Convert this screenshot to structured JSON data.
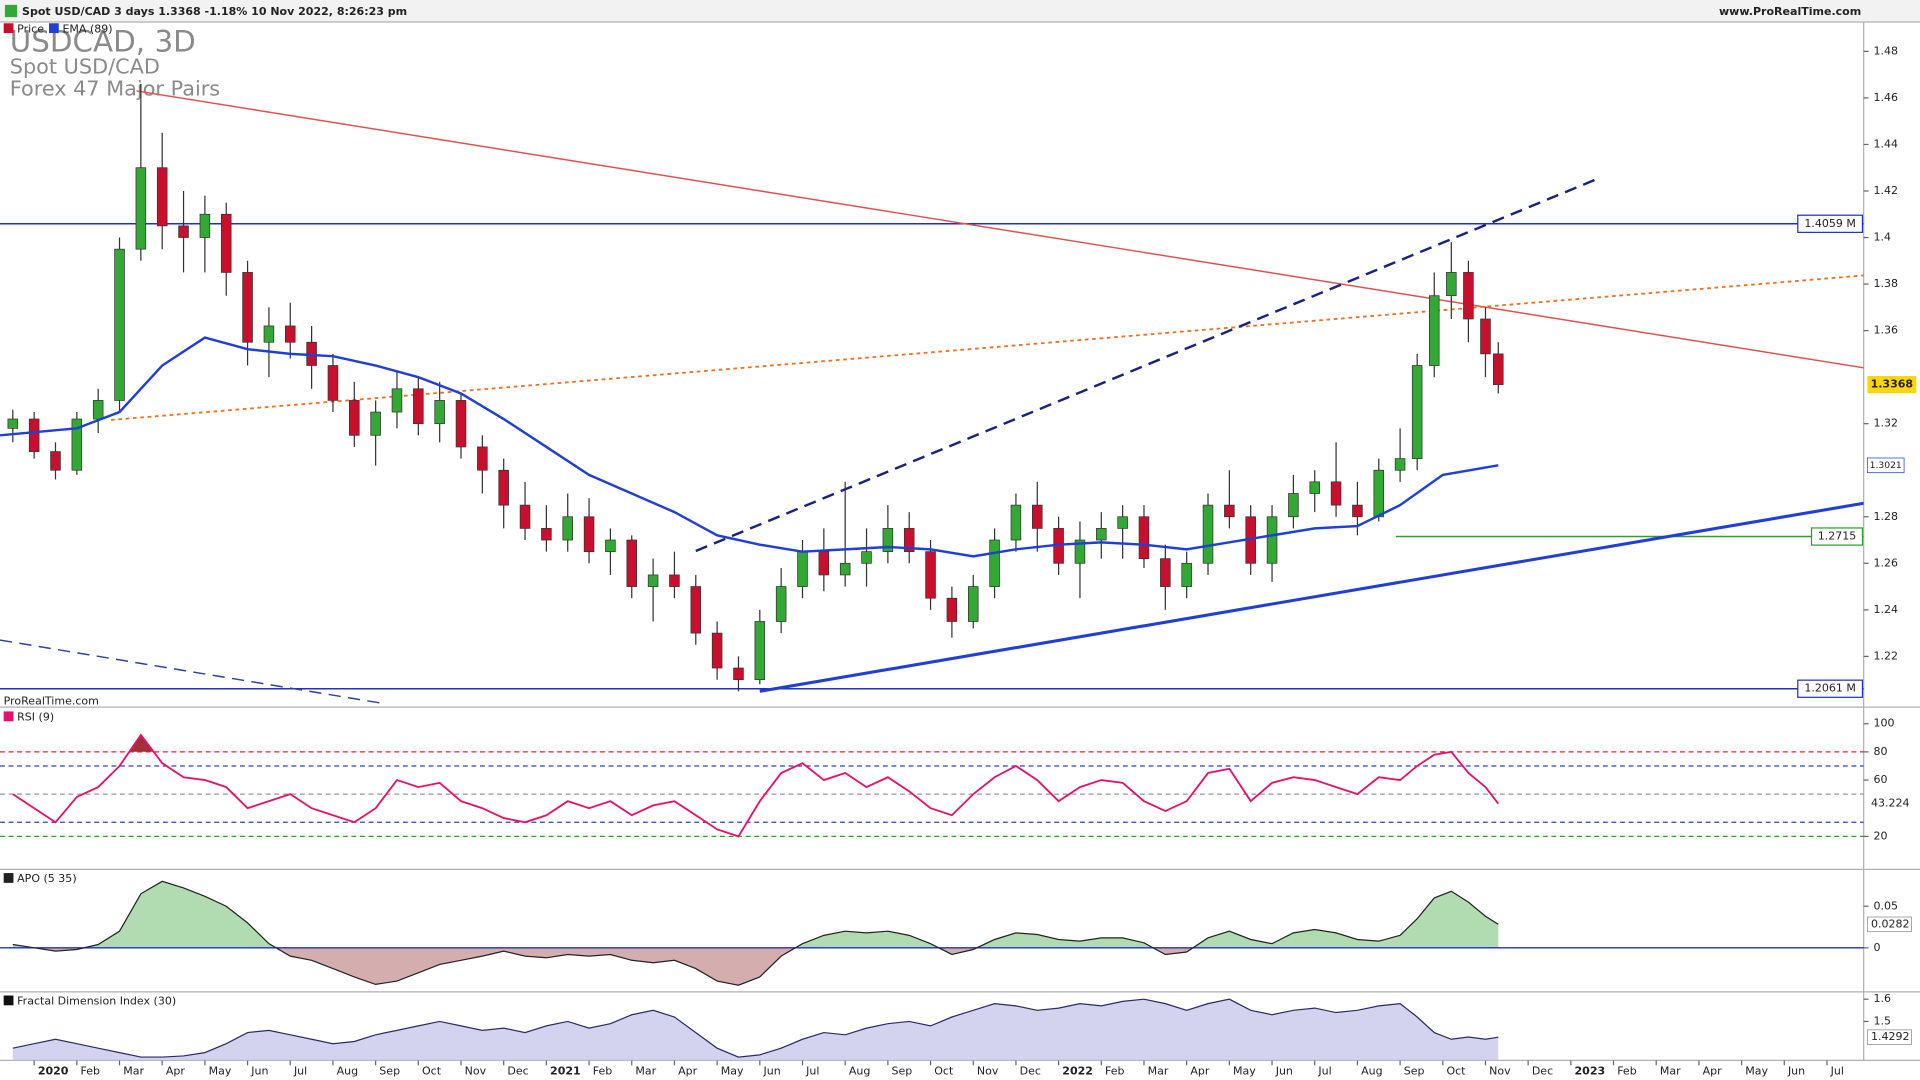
{
  "header": {
    "title": "Spot USD/CAD 3 days 1.3368 -1.18% 10 Nov 2022, 8:26:23 pm",
    "site": "www.ProRealTime.com",
    "watermark": "ProRealTime.com"
  },
  "chart_data": [
    {
      "type": "candlestick",
      "title": "USDCAD, 3D",
      "subtitle": [
        "Spot USD/CAD",
        "Forex 47 Major Pairs"
      ],
      "name": "Price",
      "up_color": "#34a834",
      "down_color": "#c8102e",
      "x": [
        -0.5,
        0,
        0.5,
        1,
        1.5,
        2,
        2.5,
        3,
        3.5,
        4,
        4.5,
        5,
        5.5,
        6,
        6.5,
        7,
        7.5,
        8,
        8.5,
        9,
        9.5,
        10,
        10.5,
        11,
        11.5,
        12,
        12.5,
        13,
        13.5,
        14,
        14.5,
        15,
        15.5,
        16,
        16.5,
        17,
        17.5,
        18,
        18.5,
        19,
        19.5,
        20,
        20.5,
        21,
        21.5,
        22,
        22.5,
        23,
        23.5,
        24,
        24.5,
        25,
        25.5,
        26,
        26.5,
        27,
        27.5,
        28,
        28.5,
        29,
        29.5,
        30,
        30.5,
        31,
        31.5,
        32,
        32.4,
        32.8,
        33.2,
        33.6,
        34,
        34.3
      ],
      "open": [
        1.318,
        1.322,
        1.308,
        1.3,
        1.322,
        1.33,
        1.395,
        1.43,
        1.405,
        1.4,
        1.41,
        1.385,
        1.355,
        1.362,
        1.355,
        1.345,
        1.33,
        1.315,
        1.325,
        1.335,
        1.32,
        1.33,
        1.31,
        1.3,
        1.285,
        1.275,
        1.27,
        1.28,
        1.265,
        1.27,
        1.25,
        1.255,
        1.25,
        1.23,
        1.215,
        1.21,
        1.235,
        1.25,
        1.265,
        1.255,
        1.26,
        1.265,
        1.275,
        1.265,
        1.245,
        1.235,
        1.25,
        1.27,
        1.285,
        1.275,
        1.26,
        1.27,
        1.275,
        1.28,
        1.262,
        1.25,
        1.26,
        1.285,
        1.28,
        1.26,
        1.28,
        1.29,
        1.295,
        1.285,
        1.28,
        1.3,
        1.305,
        1.345,
        1.375,
        1.385,
        1.365,
        1.35
      ],
      "high": [
        1.326,
        1.325,
        1.312,
        1.325,
        1.335,
        1.4,
        1.466,
        1.445,
        1.42,
        1.418,
        1.415,
        1.39,
        1.37,
        1.372,
        1.362,
        1.35,
        1.338,
        1.33,
        1.342,
        1.34,
        1.338,
        1.333,
        1.315,
        1.305,
        1.295,
        1.285,
        1.29,
        1.288,
        1.275,
        1.272,
        1.262,
        1.265,
        1.255,
        1.235,
        1.22,
        1.24,
        1.258,
        1.27,
        1.275,
        1.295,
        1.275,
        1.285,
        1.282,
        1.27,
        1.25,
        1.255,
        1.275,
        1.29,
        1.295,
        1.28,
        1.278,
        1.282,
        1.285,
        1.285,
        1.268,
        1.265,
        1.29,
        1.3,
        1.285,
        1.285,
        1.298,
        1.3,
        1.312,
        1.295,
        1.305,
        1.318,
        1.35,
        1.385,
        1.398,
        1.39,
        1.37,
        1.355
      ],
      "low": [
        1.312,
        1.305,
        1.296,
        1.298,
        1.316,
        1.325,
        1.39,
        1.395,
        1.385,
        1.385,
        1.375,
        1.345,
        1.34,
        1.348,
        1.335,
        1.325,
        1.31,
        1.302,
        1.318,
        1.315,
        1.312,
        1.305,
        1.29,
        1.275,
        1.27,
        1.265,
        1.265,
        1.26,
        1.255,
        1.245,
        1.235,
        1.245,
        1.225,
        1.21,
        1.205,
        1.208,
        1.23,
        1.245,
        1.248,
        1.25,
        1.25,
        1.26,
        1.26,
        1.24,
        1.228,
        1.232,
        1.245,
        1.265,
        1.265,
        1.255,
        1.245,
        1.262,
        1.262,
        1.258,
        1.24,
        1.245,
        1.255,
        1.275,
        1.255,
        1.252,
        1.275,
        1.282,
        1.28,
        1.272,
        1.278,
        1.295,
        1.3,
        1.34,
        1.365,
        1.355,
        1.34,
        1.333
      ],
      "close": [
        1.322,
        1.308,
        1.3,
        1.322,
        1.33,
        1.395,
        1.43,
        1.405,
        1.4,
        1.41,
        1.385,
        1.355,
        1.362,
        1.355,
        1.345,
        1.33,
        1.315,
        1.325,
        1.335,
        1.32,
        1.33,
        1.31,
        1.3,
        1.285,
        1.275,
        1.27,
        1.28,
        1.265,
        1.27,
        1.25,
        1.255,
        1.25,
        1.23,
        1.215,
        1.21,
        1.235,
        1.25,
        1.265,
        1.255,
        1.26,
        1.265,
        1.275,
        1.265,
        1.245,
        1.235,
        1.25,
        1.27,
        1.285,
        1.275,
        1.26,
        1.27,
        1.275,
        1.28,
        1.262,
        1.25,
        1.26,
        1.285,
        1.28,
        1.26,
        1.28,
        1.29,
        1.295,
        1.285,
        1.28,
        1.3,
        1.305,
        1.345,
        1.375,
        1.385,
        1.365,
        1.35,
        1.3368
      ],
      "ema": {
        "name": "EMA (89)",
        "color": "#1f3fd6",
        "x": [
          -0.8,
          1,
          2,
          3,
          4,
          5,
          6,
          7,
          8,
          9,
          10,
          11,
          12,
          13,
          14,
          15,
          16,
          17,
          18,
          19,
          20,
          21,
          22,
          23,
          24,
          25,
          26,
          27,
          28,
          29,
          30,
          31,
          32,
          33,
          34.3
        ],
        "values": [
          1.315,
          1.318,
          1.325,
          1.345,
          1.357,
          1.352,
          1.35,
          1.349,
          1.345,
          1.34,
          1.333,
          1.322,
          1.31,
          1.298,
          1.29,
          1.282,
          1.272,
          1.268,
          1.265,
          1.266,
          1.267,
          1.266,
          1.263,
          1.266,
          1.268,
          1.269,
          1.268,
          1.266,
          1.269,
          1.272,
          1.275,
          1.276,
          1.285,
          1.298,
          1.3021
        ]
      },
      "hlines": [
        {
          "value": 1.4059,
          "label": "1.4059 M",
          "color": "#2030c0"
        },
        {
          "value": 1.2061,
          "label": "1.2061 M",
          "color": "#2030c0"
        },
        {
          "value": 1.2715,
          "label": "1.2715",
          "color": "#2aa02a",
          "x_start": 31.9
        }
      ],
      "trendlines": [
        {
          "color": "#e05050",
          "dash": "none",
          "width": 1.2,
          "points": [
            [
              2.4,
              1.463
            ],
            [
              42.86,
              1.344
            ]
          ]
        },
        {
          "color": "#f07020",
          "dash": "3,3",
          "width": 1.5,
          "points": [
            [
              1.8,
              1.3216
            ],
            [
              42.86,
              1.3837
            ]
          ]
        },
        {
          "color": "#1a237e",
          "dash": "10,6",
          "width": 2,
          "points": [
            [
              15.5,
              1.2653
            ],
            [
              36.7,
              1.4258
            ]
          ]
        },
        {
          "color": "#1f3fd6",
          "dash": "none",
          "width": 2.5,
          "points": [
            [
              17,
              1.205
            ],
            [
              42.86,
              1.2858
            ]
          ]
        },
        {
          "color": "#3040a0",
          "dash": "10,6",
          "width": 1.2,
          "points": [
            [
              -0.8,
              1.227
            ],
            [
              8.1,
              1.2
            ]
          ]
        }
      ],
      "xlim": [
        -0.8,
        42.86
      ],
      "ylim": [
        1.1995,
        1.4926
      ],
      "yticks": [
        1.22,
        1.24,
        1.26,
        1.28,
        1.32,
        1.36,
        1.38,
        1.4,
        1.42,
        1.44,
        1.46,
        1.48
      ],
      "xticks": [
        {
          "value": 0,
          "label": "2020"
        },
        {
          "value": 1,
          "label": "Feb"
        },
        {
          "value": 2,
          "label": "Mar"
        },
        {
          "value": 3,
          "label": "Apr"
        },
        {
          "value": 4,
          "label": "May"
        },
        {
          "value": 5,
          "label": "Jun"
        },
        {
          "value": 6,
          "label": "Jul"
        },
        {
          "value": 7,
          "label": "Aug"
        },
        {
          "value": 8,
          "label": "Sep"
        },
        {
          "value": 9,
          "label": "Oct"
        },
        {
          "value": 10,
          "label": "Nov"
        },
        {
          "value": 11,
          "label": "Dec"
        },
        {
          "value": 12,
          "label": "2021"
        },
        {
          "value": 13,
          "label": "Feb"
        },
        {
          "value": 14,
          "label": "Mar"
        },
        {
          "value": 15,
          "label": "Apr"
        },
        {
          "value": 16,
          "label": "May"
        },
        {
          "value": 17,
          "label": "Jun"
        },
        {
          "value": 18,
          "label": "Jul"
        },
        {
          "value": 19,
          "label": "Aug"
        },
        {
          "value": 20,
          "label": "Sep"
        },
        {
          "value": 21,
          "label": "Oct"
        },
        {
          "value": 22,
          "label": "Nov"
        },
        {
          "value": 23,
          "label": "Dec"
        },
        {
          "value": 24,
          "label": "2022"
        },
        {
          "value": 25,
          "label": "Feb"
        },
        {
          "value": 26,
          "label": "Mar"
        },
        {
          "value": 27,
          "label": "Apr"
        },
        {
          "value": 28,
          "label": "May"
        },
        {
          "value": 29,
          "label": "Jun"
        },
        {
          "value": 30,
          "label": "Jul"
        },
        {
          "value": 31,
          "label": "Aug"
        },
        {
          "value": 32,
          "label": "Sep"
        },
        {
          "value": 33,
          "label": "Oct"
        },
        {
          "value": 34,
          "label": "Nov"
        },
        {
          "value": 35,
          "label": "Dec"
        },
        {
          "value": 36,
          "label": "2023"
        },
        {
          "value": 37,
          "label": "Feb"
        },
        {
          "value": 38,
          "label": "Mar"
        },
        {
          "value": 39,
          "label": "Apr"
        },
        {
          "value": 40,
          "label": "May"
        },
        {
          "value": 41,
          "label": "Jun"
        },
        {
          "value": 42,
          "label": "Jul"
        }
      ]
    },
    {
      "type": "line",
      "title": "RSI (9)",
      "color": "#e8106a",
      "overbought_fill": "#a0303a",
      "values": [
        50,
        40,
        30,
        48,
        55,
        70,
        92,
        72,
        62,
        60,
        55,
        40,
        45,
        50,
        40,
        35,
        30,
        40,
        60,
        55,
        58,
        45,
        40,
        33,
        30,
        35,
        45,
        40,
        45,
        35,
        42,
        45,
        35,
        25,
        20,
        45,
        65,
        72,
        60,
        65,
        55,
        62,
        52,
        40,
        35,
        50,
        62,
        70,
        60,
        45,
        55,
        60,
        58,
        45,
        38,
        45,
        65,
        68,
        45,
        58,
        62,
        60,
        55,
        50,
        62,
        60,
        70,
        78,
        80,
        65,
        55,
        43.224
      ],
      "levels": [
        {
          "value": 80,
          "color": "#e02040"
        },
        {
          "value": 70,
          "color": "#3040c0"
        },
        {
          "value": 50,
          "color": "#999999"
        },
        {
          "value": 30,
          "color": "#3040c0"
        },
        {
          "value": 20,
          "color": "#2aa02a"
        }
      ],
      "ylim": [
        -1.7,
        109.6
      ],
      "yticks": [
        20,
        60,
        80,
        100
      ]
    },
    {
      "type": "area",
      "title": "APO (5 35)",
      "color": "#222222",
      "up_color": "#9ed29e",
      "down_color": "#c99a9a",
      "baseline": 0,
      "baseline_color": "#2030c0",
      "values": [
        0.004,
        0,
        -0.004,
        -0.002,
        0.004,
        0.02,
        0.065,
        0.08,
        0.072,
        0.062,
        0.05,
        0.03,
        0.005,
        -0.01,
        -0.015,
        -0.025,
        -0.035,
        -0.044,
        -0.04,
        -0.03,
        -0.02,
        -0.015,
        -0.01,
        -0.004,
        -0.01,
        -0.012,
        -0.008,
        -0.01,
        -0.008,
        -0.015,
        -0.018,
        -0.015,
        -0.025,
        -0.04,
        -0.045,
        -0.035,
        -0.01,
        0.005,
        0.015,
        0.02,
        0.018,
        0.02,
        0.015,
        0.005,
        -0.008,
        -0.002,
        0.01,
        0.018,
        0.016,
        0.01,
        0.008,
        0.012,
        0.012,
        0.006,
        -0.008,
        -0.005,
        0.012,
        0.02,
        0.01,
        0.005,
        0.018,
        0.022,
        0.018,
        0.01,
        0.008,
        0.015,
        0.035,
        0.06,
        0.068,
        0.055,
        0.038,
        0.0282
      ],
      "ylim": [
        -0.05,
        0.0914
      ],
      "yticks": [
        0,
        0.05
      ]
    },
    {
      "type": "area",
      "title": "Fractal Dimension Index (30)",
      "color": "#2a2a6a",
      "up_color": "#c8c8ec",
      "values": [
        1.38,
        1.4,
        1.42,
        1.4,
        1.38,
        1.36,
        1.34,
        1.34,
        1.345,
        1.36,
        1.4,
        1.45,
        1.46,
        1.44,
        1.42,
        1.4,
        1.41,
        1.44,
        1.46,
        1.48,
        1.5,
        1.48,
        1.46,
        1.47,
        1.45,
        1.48,
        1.5,
        1.47,
        1.49,
        1.53,
        1.55,
        1.52,
        1.45,
        1.38,
        1.34,
        1.35,
        1.38,
        1.42,
        1.45,
        1.44,
        1.47,
        1.49,
        1.5,
        1.48,
        1.52,
        1.55,
        1.58,
        1.57,
        1.55,
        1.56,
        1.58,
        1.57,
        1.59,
        1.6,
        1.58,
        1.55,
        1.58,
        1.6,
        1.55,
        1.53,
        1.55,
        1.56,
        1.54,
        1.55,
        1.57,
        1.58,
        1.52,
        1.45,
        1.42,
        1.43,
        1.42,
        1.4292
      ],
      "ylim": [
        1.325,
        1.622
      ],
      "yticks": [
        1.5,
        1.6
      ]
    }
  ]
}
